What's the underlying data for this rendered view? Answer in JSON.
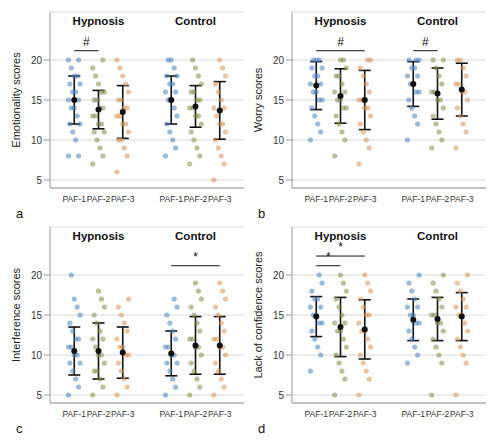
{
  "chart_data": [
    {
      "type": "scatter",
      "title": "a",
      "y_label": "Emotionality scores",
      "groups": [
        "Hypnosis",
        "Control"
      ],
      "categories": [
        "PAF-1",
        "PAF-2",
        "PAF-3",
        "PAF-1",
        "PAF-2",
        "PAF-3"
      ],
      "colors": [
        "#4f81bd",
        "#7f8c4d",
        "#d4955a",
        "#4f81bd",
        "#7f8c4d",
        "#d4955a"
      ],
      "points": [
        [
          8,
          8,
          10,
          11,
          12,
          12,
          13,
          14,
          14,
          15,
          15,
          16,
          16,
          17,
          17,
          18,
          18,
          19,
          20,
          20
        ],
        [
          7,
          8,
          9,
          10,
          11,
          11,
          12,
          12,
          13,
          13,
          14,
          14,
          15,
          15,
          16,
          16,
          17,
          18,
          19,
          20
        ],
        [
          6,
          8,
          9,
          10,
          10,
          11,
          12,
          12,
          13,
          13,
          14,
          14,
          15,
          15,
          16,
          17,
          18,
          19,
          20
        ],
        [
          8,
          9,
          10,
          11,
          12,
          13,
          14,
          15,
          15,
          16,
          16,
          17,
          17,
          18,
          18,
          19,
          20,
          20
        ],
        [
          7,
          8,
          9,
          10,
          11,
          12,
          13,
          13,
          14,
          14,
          15,
          15,
          16,
          16,
          17,
          18,
          19,
          20
        ],
        [
          5,
          7,
          8,
          9,
          10,
          11,
          12,
          12,
          13,
          14,
          14,
          15,
          16,
          17,
          18,
          19,
          20
        ]
      ],
      "mean": [
        15,
        13.8,
        13.5,
        15,
        14.2,
        13.7
      ],
      "sd": [
        3,
        2.4,
        3.3,
        3,
        2.6,
        3.6
      ],
      "annotations": [
        {
          "from": 0,
          "to": 1,
          "label": "#"
        }
      ],
      "ylim": [
        4,
        26
      ],
      "yticks": [
        5,
        10,
        15,
        20
      ],
      "grid": true
    },
    {
      "type": "scatter",
      "title": "b",
      "y_label": "Worry scores",
      "groups": [
        "Hypnosis",
        "Control"
      ],
      "categories": [
        "PAF-1",
        "PAF-2",
        "PAF-3",
        "PAF-1",
        "PAF-2",
        "PAF-3"
      ],
      "colors": [
        "#4f81bd",
        "#7f8c4d",
        "#d4955a",
        "#4f81bd",
        "#7f8c4d",
        "#d4955a"
      ],
      "points": [
        [
          10,
          11,
          12,
          13,
          14,
          15,
          15,
          16,
          16,
          17,
          17,
          18,
          18,
          19,
          19,
          20,
          20,
          20
        ],
        [
          8,
          10,
          11,
          12,
          13,
          14,
          14,
          15,
          15,
          16,
          16,
          17,
          18,
          18,
          19,
          20,
          20
        ],
        [
          7,
          9,
          10,
          11,
          12,
          13,
          14,
          14,
          15,
          15,
          16,
          17,
          18,
          19,
          20,
          20
        ],
        [
          10,
          12,
          13,
          14,
          15,
          16,
          16,
          17,
          17,
          18,
          18,
          19,
          19,
          20,
          20,
          20
        ],
        [
          9,
          10,
          11,
          12,
          13,
          14,
          15,
          15,
          16,
          16,
          17,
          18,
          19,
          20,
          20
        ],
        [
          9,
          11,
          12,
          13,
          14,
          15,
          16,
          16,
          17,
          17,
          18,
          19,
          20,
          20
        ]
      ],
      "mean": [
        16.8,
        15.5,
        15,
        17,
        15.8,
        16.3
      ],
      "sd": [
        3,
        3.4,
        3.7,
        2.8,
        3.2,
        3.3
      ],
      "annotations": [
        {
          "from": 0,
          "to": 2,
          "label": "#"
        },
        {
          "from": 3,
          "to": 4,
          "label": "#"
        }
      ],
      "ylim": [
        4,
        26
      ],
      "yticks": [
        5,
        10,
        15,
        20
      ],
      "grid": true
    },
    {
      "type": "scatter",
      "title": "c",
      "y_label": "Interference scores",
      "groups": [
        "Hypnosis",
        "Control"
      ],
      "categories": [
        "PAF-1",
        "PAF-2",
        "PAF-3",
        "PAF-1",
        "PAF-2",
        "PAF-3"
      ],
      "colors": [
        "#4f81bd",
        "#7f8c4d",
        "#d4955a",
        "#4f81bd",
        "#7f8c4d",
        "#d4955a"
      ],
      "points": [
        [
          5,
          6,
          7,
          8,
          9,
          9,
          10,
          10,
          11,
          11,
          12,
          12,
          13,
          14,
          15,
          16,
          17,
          20
        ],
        [
          5,
          6,
          7,
          8,
          8,
          9,
          10,
          10,
          11,
          12,
          12,
          13,
          14,
          15,
          16,
          17,
          18
        ],
        [
          5,
          6,
          7,
          8,
          9,
          10,
          10,
          11,
          11,
          12,
          13,
          14,
          15,
          16,
          17
        ],
        [
          5,
          6,
          7,
          8,
          9,
          9,
          10,
          10,
          11,
          11,
          12,
          13,
          14,
          15,
          16,
          17
        ],
        [
          5,
          6,
          7,
          8,
          9,
          10,
          11,
          11,
          12,
          12,
          13,
          14,
          15,
          16,
          17,
          18,
          19
        ],
        [
          5,
          6,
          7,
          8,
          9,
          10,
          11,
          11,
          12,
          12,
          13,
          14,
          15,
          16,
          17,
          18,
          19
        ]
      ],
      "mean": [
        10.5,
        10.5,
        10.3,
        10.2,
        11.2,
        11.2
      ],
      "sd": [
        3,
        3.5,
        3.2,
        2.8,
        3.6,
        3.6
      ],
      "annotations": [
        {
          "from": 3,
          "to": 5,
          "label": "*"
        }
      ],
      "ylim": [
        4,
        26
      ],
      "yticks": [
        5,
        10,
        15,
        20
      ],
      "grid": true
    },
    {
      "type": "scatter",
      "title": "d",
      "y_label": "Lack of confidence scores",
      "groups": [
        "Hypnosis",
        "Control"
      ],
      "categories": [
        "PAF-1",
        "PAF-2",
        "PAF-3",
        "PAF-1",
        "PAF-2",
        "PAF-3"
      ],
      "colors": [
        "#4f81bd",
        "#7f8c4d",
        "#d4955a",
        "#4f81bd",
        "#7f8c4d",
        "#d4955a"
      ],
      "points": [
        [
          8,
          10,
          11,
          12,
          13,
          14,
          14,
          15,
          15,
          16,
          16,
          17,
          17,
          18,
          19,
          20
        ],
        [
          5,
          7,
          8,
          9,
          10,
          11,
          12,
          13,
          13,
          14,
          14,
          15,
          16,
          17,
          18,
          19,
          20
        ],
        [
          5,
          7,
          8,
          9,
          10,
          11,
          12,
          13,
          13,
          14,
          15,
          15,
          16,
          17,
          18,
          19,
          20
        ],
        [
          9,
          10,
          11,
          12,
          13,
          14,
          14,
          15,
          15,
          16,
          16,
          17,
          18,
          19,
          20
        ],
        [
          5,
          9,
          10,
          11,
          12,
          13,
          14,
          14,
          15,
          15,
          16,
          17,
          18,
          19,
          20
        ],
        [
          5,
          9,
          10,
          11,
          12,
          13,
          14,
          15,
          15,
          16,
          16,
          17,
          18,
          19,
          20
        ]
      ],
      "mean": [
        14.8,
        13.5,
        13.2,
        14.4,
        14.5,
        14.8
      ],
      "sd": [
        2.5,
        3.7,
        3.7,
        2.6,
        2.7,
        3
      ],
      "annotations": [
        {
          "from": 0,
          "to": 1,
          "label": "*"
        },
        {
          "from": 0,
          "to": 2,
          "label": "*"
        }
      ],
      "ylim": [
        4,
        26
      ],
      "yticks": [
        5,
        10,
        15,
        20
      ],
      "grid": true
    }
  ]
}
